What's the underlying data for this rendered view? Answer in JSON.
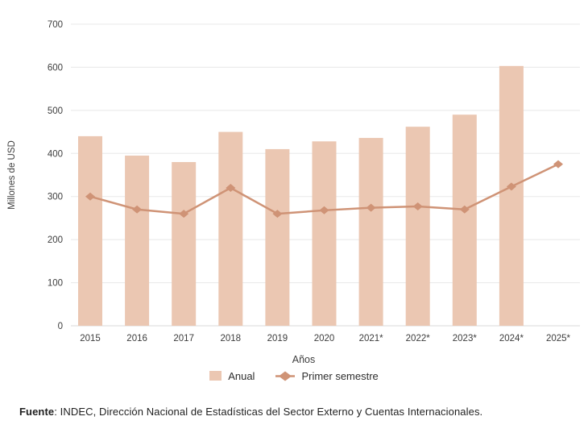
{
  "chart_data": {
    "type": "bar",
    "title": "",
    "categories": [
      "2015",
      "2016",
      "2017",
      "2018",
      "2019",
      "2020",
      "2021*",
      "2022*",
      "2023*",
      "2024*",
      "2025*"
    ],
    "series": [
      {
        "name": "Anual",
        "type": "bar",
        "color": "#ebc7b2",
        "values": [
          440,
          395,
          380,
          450,
          410,
          428,
          436,
          462,
          490,
          603,
          null
        ]
      },
      {
        "name": "Primer semestre",
        "type": "line",
        "color": "#cf9376",
        "values": [
          300,
          270,
          260,
          320,
          260,
          268,
          274,
          277,
          270,
          323,
          375
        ]
      }
    ],
    "xlabel": "Años",
    "ylabel": "Millones de USD",
    "ylim": [
      0,
      700
    ],
    "ytick_step": 100,
    "grid": true,
    "legend_position": "bottom"
  },
  "styles": {
    "grid_color": "#e8e8e8",
    "axis_color": "#d9d9d9",
    "tick_text_color": "#3d3d3d",
    "bar_color": "#ebc7b2",
    "line_color": "#cf9376"
  },
  "source": {
    "label": "Fuente",
    "rest": ": INDEC, Dirección Nacional de Estadísticas del Sector Externo y Cuentas Internacionales."
  }
}
